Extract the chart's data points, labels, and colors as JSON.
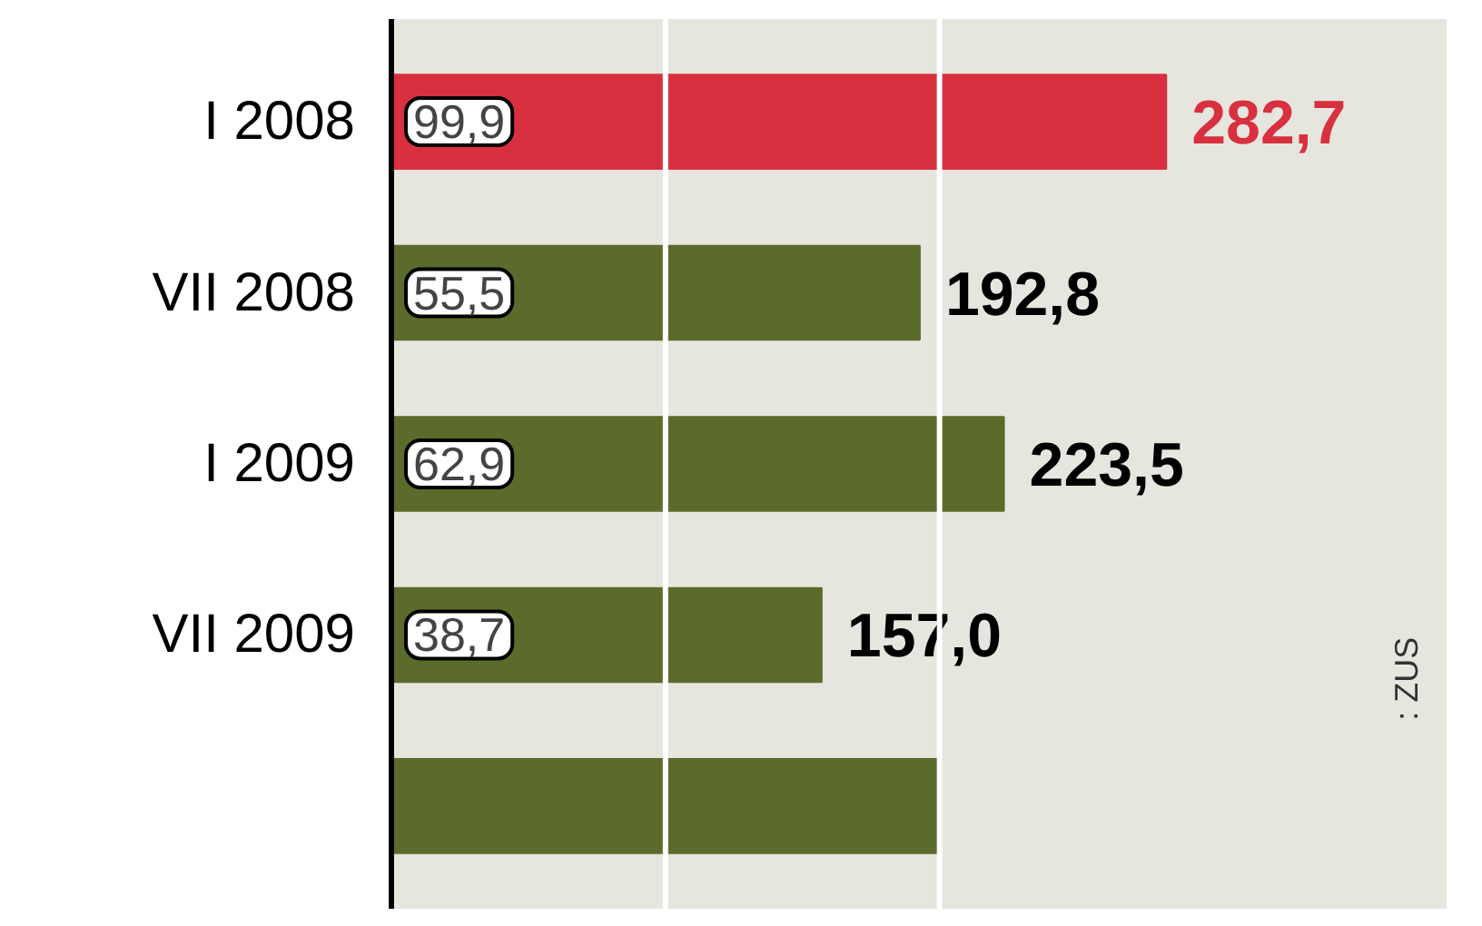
{
  "chart_data": {
    "type": "bar",
    "orientation": "horizontal",
    "categories": [
      "I 2008",
      "VII 2008",
      "I 2009",
      "VII 2009",
      null
    ],
    "values": [
      282.7,
      192.8,
      223.5,
      157.0,
      199
    ],
    "colors": [
      "#d8303f",
      "#5b6b2b",
      "#5b6b2b",
      "#5b6b2b",
      "#5b6b2b"
    ],
    "value_labels": [
      "282,7",
      "192,8",
      "223,5",
      "157,0",
      null
    ],
    "xlim": [
      0,
      385
    ],
    "ref_lines": [
      {
        "axis": "x",
        "value": 100,
        "label": null,
        "color": "#ffffff"
      },
      {
        "axis": "x",
        "value": 200,
        "label": null,
        "color": "#ffffff"
      }
    ],
    "annotations": [
      "99,9",
      "55,5",
      "62,9",
      "38,7",
      ": ZUS"
    ]
  }
}
